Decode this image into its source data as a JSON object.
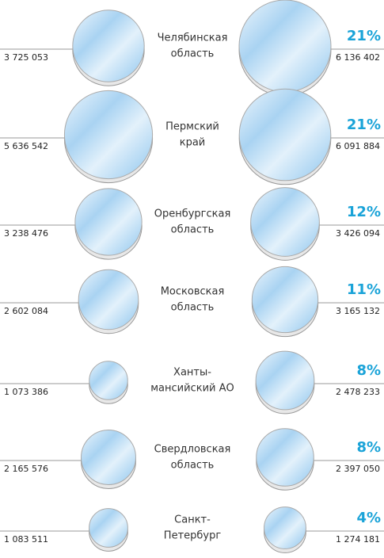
{
  "chart_data": {
    "type": "bubble",
    "categories": [
      [
        "Челябинская",
        "область"
      ],
      [
        "Пермский",
        "край"
      ],
      [
        "Оренбургская",
        "область"
      ],
      [
        "Московская",
        "область"
      ],
      [
        "Ханты-",
        "мансийский АО"
      ],
      [
        "Свердловская",
        "область"
      ],
      [
        "Санкт-",
        "Петербург"
      ]
    ],
    "series": [
      {
        "color": "#cfe6f7",
        "values": [
          3725053,
          5636542,
          3238476,
          2602084,
          1073386,
          2165576,
          1083511
        ],
        "value_labels": [
          "3 725 053",
          "5 636 542",
          "3 238 476",
          "2 602 084",
          "1 073 386",
          "2 165 576",
          "1 083 511"
        ]
      },
      {
        "color": "#cfe6f7",
        "values": [
          6136402,
          6091884,
          3426094,
          3165132,
          2478233,
          2397050,
          1274181
        ],
        "value_labels": [
          "6 136 402",
          "6 091 884",
          "3 426 094",
          "3 165 132",
          "2 478 233",
          "2 397 050",
          "1 274 181"
        ]
      },
      {
        "color": "#1aa3d8",
        "values": [
          21,
          21,
          12,
          11,
          8,
          8,
          4
        ],
        "value_labels": [
          "21%",
          "21%",
          "12%",
          "11%",
          "8%",
          "8%",
          "4%"
        ]
      }
    ]
  }
}
